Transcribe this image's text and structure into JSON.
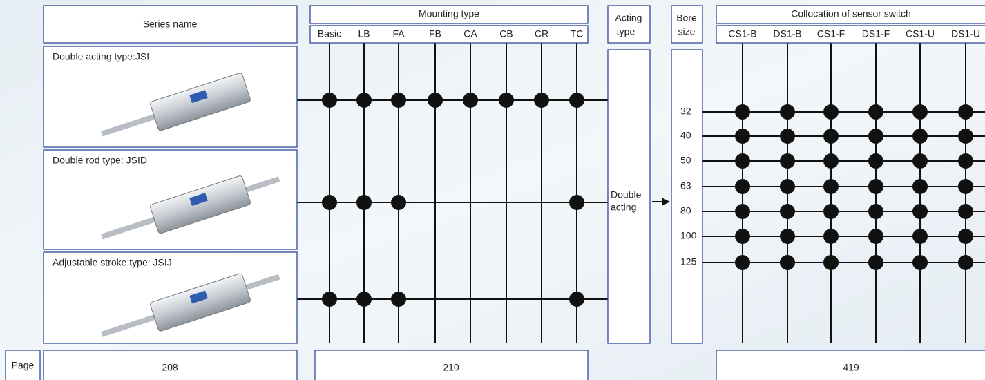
{
  "headers": {
    "series_name": "Series name",
    "mounting_type": {
      "title": "Mounting type",
      "options": [
        "Basic",
        "LB",
        "FA",
        "FB",
        "CA",
        "CB",
        "CR",
        "TC"
      ]
    },
    "acting_type": [
      "Acting",
      "type"
    ],
    "bore_size": [
      "Bore",
      "size"
    ],
    "sensor_switch": {
      "title": "Collocation of sensor switch",
      "options": [
        "CS1-B",
        "DS1-B",
        "CS1-F",
        "DS1-F",
        "CS1-U",
        "DS1-U"
      ]
    }
  },
  "series": [
    {
      "label": "Double acting type:JSI",
      "mounting": [
        true,
        true,
        true,
        true,
        true,
        true,
        true,
        true
      ]
    },
    {
      "label": "Double rod type: JSID",
      "mounting": [
        true,
        true,
        true,
        false,
        false,
        false,
        false,
        true
      ]
    },
    {
      "label": "Adjustable stroke type: JSIJ",
      "mounting": [
        true,
        true,
        true,
        false,
        false,
        false,
        false,
        true
      ]
    }
  ],
  "acting": [
    "Double",
    "acting"
  ],
  "bore_sizes": [
    32,
    40,
    50,
    63,
    80,
    100,
    125
  ],
  "page": {
    "label": "Page",
    "series": 208,
    "mounting": 210,
    "sensor": 419
  }
}
